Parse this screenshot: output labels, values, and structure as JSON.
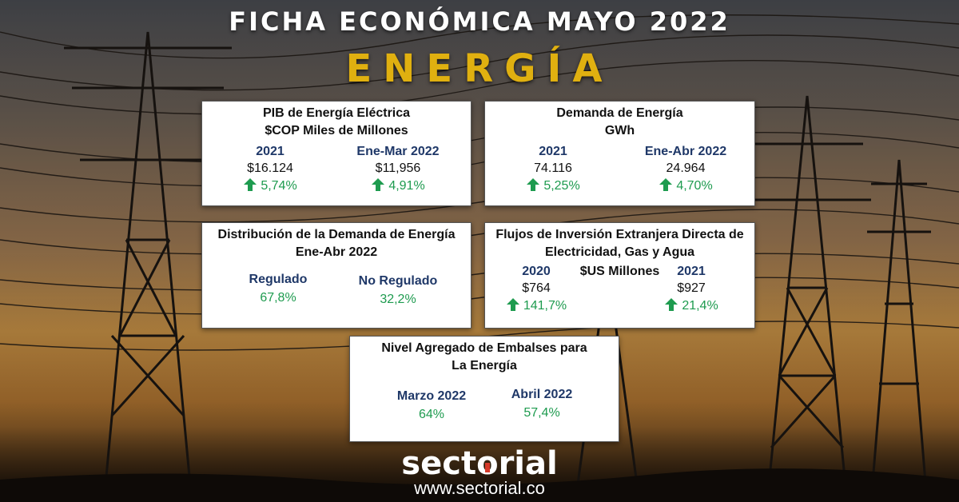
{
  "header": {
    "title": "FICHA ECONÓMICA MAYO 2022",
    "subtitle": "ENERGÍA"
  },
  "cards": {
    "pib": {
      "title_line1": "PIB de Energía Eléctrica",
      "title_line2": "$COP Miles de Millones",
      "col1": {
        "label": "2021",
        "value": "$16.124",
        "change": "5,74%",
        "direction": "up"
      },
      "col2": {
        "label": "Ene-Mar 2022",
        "value": "$11,956",
        "change": "4,91%",
        "direction": "up"
      }
    },
    "demanda": {
      "title_line1": "Demanda de Energía",
      "title_line2": "GWh",
      "col1": {
        "label": "2021",
        "value": "74.116",
        "change": "5,25%",
        "direction": "up"
      },
      "col2": {
        "label": "Ene-Abr 2022",
        "value": "24.964",
        "change": "4,70%",
        "direction": "up"
      }
    },
    "distribucion": {
      "title_line1": "Distribución de la Demanda de Energía",
      "title_line2": "Ene-Abr 2022",
      "col1": {
        "label": "Regulado",
        "change": "67,8%"
      },
      "col2": {
        "label": "No Regulado",
        "change": "32,2%"
      }
    },
    "flujos": {
      "title_line1": "Flujos de Inversión Extranjera Directa de",
      "title_line2": "Electricidad, Gas y Agua",
      "unit": "$US Millones",
      "col1": {
        "label": "2020",
        "value": "$764",
        "change": "141,7%",
        "direction": "up"
      },
      "col2": {
        "label": "2021",
        "value": "$927",
        "change": "21,4%",
        "direction": "up"
      }
    },
    "embalses": {
      "title_line1": "Nivel Agregado de Embalses para",
      "title_line2": "La Energía",
      "col1": {
        "label": "Marzo 2022",
        "change": "64%"
      },
      "col2": {
        "label": "Abril 2022",
        "change": "57,4%"
      }
    }
  },
  "footer": {
    "logo_part1": "sect",
    "logo_part2": "o",
    "logo_part3": "rial",
    "url": "www.sectorial.co"
  },
  "colors": {
    "label_blue": "#1f3868",
    "change_green": "#1e9b4f",
    "title_gold": "#e0b010",
    "logo_accent": "#d63a2a"
  },
  "icons": {
    "change_indicator": "arrow-up-icon"
  }
}
